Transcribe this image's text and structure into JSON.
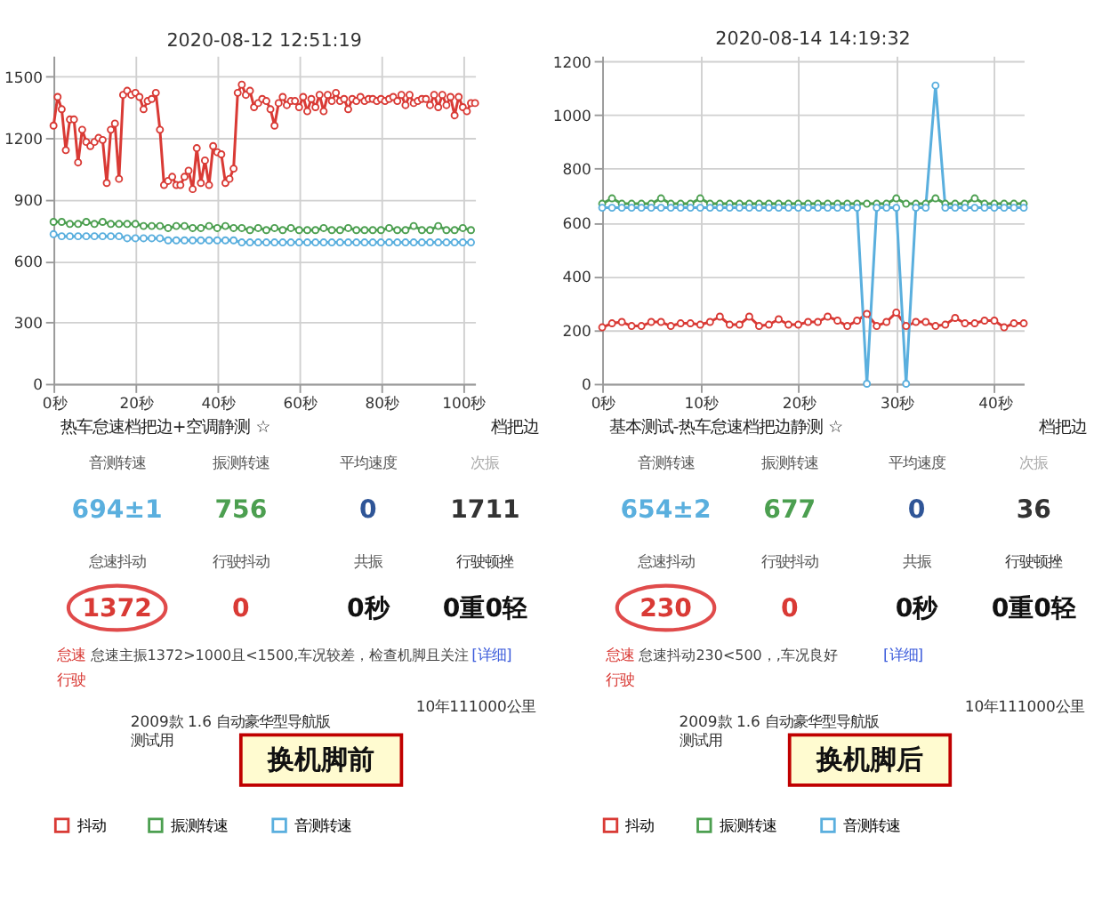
{
  "chart_data": [
    {
      "type": "line",
      "title": "2020-08-12 12:51:19",
      "xlim": [
        0,
        103
      ],
      "ylim": [
        0,
        1600
      ],
      "xticks": [
        {
          "value": 0,
          "label": "0秒"
        },
        {
          "value": 20,
          "label": "20秒"
        },
        {
          "value": 40,
          "label": "40秒"
        },
        {
          "value": 60,
          "label": "60秒"
        },
        {
          "value": 80,
          "label": "80秒"
        },
        {
          "value": 100,
          "label": "100秒"
        }
      ],
      "yticks": [
        0,
        300,
        600,
        900,
        1200,
        1500
      ],
      "grid": true,
      "legend": "bottom",
      "marker": "circle",
      "line_style": "solid",
      "series": [
        {
          "name": "抖动",
          "color": "#d93a35",
          "x": [
            0,
            1,
            2,
            3,
            4,
            5,
            6,
            7,
            8,
            9,
            10,
            11,
            12,
            13,
            14,
            15,
            16,
            17,
            18,
            19,
            20,
            21,
            22,
            23,
            24,
            25,
            26,
            27,
            28,
            29,
            30,
            31,
            32,
            33,
            34,
            35,
            36,
            37,
            38,
            39,
            40,
            41,
            42,
            43,
            44,
            45,
            46,
            47,
            48,
            49,
            50,
            51,
            52,
            53,
            54,
            55,
            56,
            57,
            58,
            59,
            60,
            61,
            62,
            63,
            64,
            65,
            66,
            67,
            68,
            69,
            70,
            71,
            72,
            73,
            74,
            75,
            76,
            77,
            78,
            79,
            80,
            81,
            82,
            83,
            84,
            85,
            86,
            87,
            88,
            89,
            90,
            91,
            92,
            93,
            94,
            95,
            96,
            97,
            98,
            99,
            100,
            101,
            102,
            103
          ],
          "values": [
            1260,
            1400,
            1340,
            1140,
            1290,
            1290,
            1080,
            1240,
            1180,
            1160,
            1180,
            1200,
            1190,
            980,
            1240,
            1270,
            1000,
            1410,
            1430,
            1410,
            1420,
            1400,
            1340,
            1380,
            1390,
            1420,
            1240,
            970,
            990,
            1010,
            970,
            970,
            1010,
            1040,
            950,
            1150,
            980,
            1090,
            970,
            1160,
            1130,
            1120,
            980,
            1000,
            1050,
            1420,
            1460,
            1410,
            1430,
            1350,
            1370,
            1390,
            1380,
            1340,
            1260,
            1370,
            1400,
            1360,
            1380,
            1380,
            1350,
            1400,
            1330,
            1390,
            1350,
            1410,
            1330,
            1410,
            1380,
            1420,
            1380,
            1390,
            1340,
            1390,
            1380,
            1400,
            1380,
            1390,
            1390,
            1380,
            1390,
            1380,
            1390,
            1400,
            1380,
            1410,
            1360,
            1410,
            1370,
            1380,
            1390,
            1390,
            1360,
            1410,
            1350,
            1410,
            1360,
            1400,
            1310,
            1400,
            1350,
            1330,
            1370,
            1370
          ]
        },
        {
          "name": "振测转速",
          "color": "#4c9f50",
          "x": [
            0,
            2,
            4,
            6,
            8,
            10,
            12,
            14,
            16,
            18,
            20,
            22,
            24,
            26,
            28,
            30,
            32,
            34,
            36,
            38,
            40,
            42,
            44,
            46,
            48,
            50,
            52,
            54,
            56,
            58,
            60,
            62,
            64,
            66,
            68,
            70,
            72,
            74,
            76,
            78,
            80,
            82,
            84,
            86,
            88,
            90,
            92,
            94,
            96,
            98,
            100,
            102
          ],
          "values": [
            790,
            790,
            780,
            780,
            790,
            780,
            790,
            780,
            780,
            780,
            780,
            770,
            770,
            770,
            760,
            770,
            770,
            760,
            760,
            770,
            760,
            770,
            760,
            760,
            750,
            760,
            750,
            760,
            750,
            760,
            750,
            750,
            750,
            760,
            750,
            750,
            760,
            750,
            750,
            750,
            750,
            760,
            750,
            750,
            770,
            750,
            750,
            770,
            750,
            750,
            760,
            750
          ]
        },
        {
          "name": "音测转速",
          "color": "#5aafde",
          "x": [
            0,
            2,
            4,
            6,
            8,
            10,
            12,
            14,
            16,
            18,
            20,
            22,
            24,
            26,
            28,
            30,
            32,
            34,
            36,
            38,
            40,
            42,
            44,
            46,
            48,
            50,
            52,
            54,
            56,
            58,
            60,
            62,
            64,
            66,
            68,
            70,
            72,
            74,
            76,
            78,
            80,
            82,
            84,
            86,
            88,
            90,
            92,
            94,
            96,
            98,
            100,
            102
          ],
          "values": [
            730,
            720,
            720,
            720,
            720,
            720,
            720,
            720,
            720,
            710,
            710,
            710,
            710,
            710,
            700,
            700,
            700,
            700,
            700,
            700,
            700,
            700,
            700,
            690,
            690,
            690,
            690,
            690,
            690,
            690,
            690,
            690,
            690,
            690,
            690,
            690,
            690,
            690,
            690,
            690,
            690,
            690,
            690,
            690,
            690,
            690,
            690,
            690,
            690,
            690,
            690,
            690
          ]
        }
      ]
    },
    {
      "type": "other",
      "annotations": [
        "热车怠速档把边+空调静测 ☆",
        "档把边",
        "音测转速",
        "振测转速",
        "平均速度",
        "次振",
        "694±1",
        "756",
        "0",
        "1711",
        "怠速抖动",
        "行驶抖动",
        "共振",
        "行驶顿挫",
        "1372",
        "0",
        "0秒",
        "0重0轻",
        "怠速",
        "怠速主振1372>1000且<1500,车况较差，检查机脚且关注",
        "[详细]",
        "行驶",
        "10年111000公里",
        "2009款 1.6 自动豪华型导航版",
        "测试用",
        "换机脚前"
      ]
    },
    {
      "type": "line",
      "title": "2020-08-14 14:19:32",
      "xlim": [
        0,
        43
      ],
      "ylim": [
        0,
        1220
      ],
      "xticks": [
        {
          "value": 0,
          "label": "0秒"
        },
        {
          "value": 10,
          "label": "10秒"
        },
        {
          "value": 20,
          "label": "20秒"
        },
        {
          "value": 30,
          "label": "30秒"
        },
        {
          "value": 40,
          "label": "40秒"
        }
      ],
      "yticks": [
        0,
        200,
        400,
        600,
        800,
        1000,
        1200
      ],
      "grid": true,
      "legend": "bottom",
      "marker": "circle",
      "line_style": "solid",
      "x": [
        0,
        1,
        2,
        3,
        4,
        5,
        6,
        7,
        8,
        9,
        10,
        11,
        12,
        13,
        14,
        15,
        16,
        17,
        18,
        19,
        20,
        21,
        22,
        23,
        24,
        25,
        26,
        27,
        28,
        29,
        30,
        31,
        32,
        33,
        34,
        35,
        36,
        37,
        38,
        39,
        40,
        41,
        42,
        43
      ],
      "series": [
        {
          "name": "抖动",
          "color": "#d93a35",
          "values": [
            210,
            225,
            230,
            215,
            215,
            230,
            230,
            215,
            225,
            225,
            220,
            230,
            250,
            220,
            220,
            250,
            215,
            220,
            240,
            220,
            220,
            230,
            230,
            250,
            235,
            215,
            235,
            260,
            215,
            230,
            265,
            215,
            230,
            230,
            215,
            220,
            245,
            225,
            225,
            235,
            235,
            210,
            225,
            225
          ]
        },
        {
          "name": "振测转速",
          "color": "#4c9f50",
          "values": [
            670,
            690,
            670,
            670,
            670,
            670,
            690,
            670,
            670,
            670,
            690,
            670,
            670,
            670,
            670,
            670,
            670,
            670,
            670,
            670,
            670,
            670,
            670,
            670,
            670,
            670,
            670,
            670,
            670,
            670,
            690,
            670,
            670,
            670,
            690,
            670,
            670,
            670,
            690,
            670,
            670,
            670,
            670,
            670
          ]
        },
        {
          "name": "音测转速",
          "color": "#5aafde",
          "values": [
            655,
            655,
            655,
            655,
            655,
            655,
            655,
            655,
            655,
            655,
            655,
            655,
            655,
            655,
            655,
            655,
            655,
            655,
            655,
            655,
            655,
            655,
            655,
            655,
            655,
            655,
            655,
            0,
            655,
            655,
            655,
            0,
            655,
            655,
            1110,
            655,
            655,
            655,
            655,
            655,
            655,
            655,
            655,
            655
          ]
        }
      ]
    },
    {
      "type": "other",
      "annotations": [
        "基本测试-热车怠速档把边静测 ☆",
        "档把边",
        "音测转速",
        "振测转速",
        "平均速度",
        "次振",
        "654±2",
        "677",
        "0",
        "36",
        "怠速抖动",
        "行驶抖动",
        "共振",
        "行驶顿挫",
        "230",
        "0",
        "0秒",
        "0重0轻",
        "怠速",
        "怠速抖动230<500，,车况良好",
        "[详细]",
        "行驶",
        "10年111000公里",
        "2009款 1.6 自动豪华型导航版",
        "测试用",
        "换机脚后"
      ]
    }
  ]
}
